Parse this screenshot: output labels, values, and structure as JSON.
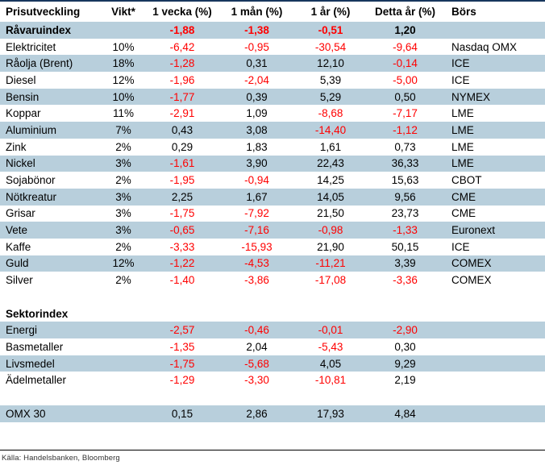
{
  "colors": {
    "row_shade": "#b8cfdc",
    "negative_value": "#ff0000",
    "top_rule": "#17365d",
    "footer_rule": "#000000",
    "source_text": "#333333"
  },
  "footer": {
    "source": "Källa: Handelsbanken, Bloomberg"
  },
  "table": {
    "columns": [
      "Prisutveckling",
      "Vikt*",
      "1 vecka (%)",
      "1 mån (%)",
      "1 år (%)",
      "Detta år (%)",
      "Börs"
    ],
    "rows": [
      {
        "name": "Råvaruindex",
        "vikt": "",
        "w1": "-1,88",
        "m1": "-1,38",
        "y1": "-0,51",
        "ytd": "1,20",
        "bors": "",
        "shade": true,
        "bold": true
      },
      {
        "name": "Elektricitet",
        "vikt": "10%",
        "w1": "-6,42",
        "m1": "-0,95",
        "y1": "-30,54",
        "ytd": "-9,64",
        "bors": "Nasdaq OMX",
        "shade": false
      },
      {
        "name": "Råolja (Brent)",
        "vikt": "18%",
        "w1": "-1,28",
        "m1": "0,31",
        "y1": "12,10",
        "ytd": "-0,14",
        "bors": "ICE",
        "shade": true
      },
      {
        "name": "Diesel",
        "vikt": "12%",
        "w1": "-1,96",
        "m1": "-2,04",
        "y1": "5,39",
        "ytd": "-5,00",
        "bors": "ICE",
        "shade": false
      },
      {
        "name": "Bensin",
        "vikt": "10%",
        "w1": "-1,77",
        "m1": "0,39",
        "y1": "5,29",
        "ytd": "0,50",
        "bors": "NYMEX",
        "shade": true
      },
      {
        "name": "Koppar",
        "vikt": "11%",
        "w1": "-2,91",
        "m1": "1,09",
        "y1": "-8,68",
        "ytd": "-7,17",
        "bors": "LME",
        "shade": false
      },
      {
        "name": "Aluminium",
        "vikt": "7%",
        "w1": "0,43",
        "m1": "3,08",
        "y1": "-14,40",
        "ytd": "-1,12",
        "bors": "LME",
        "shade": true
      },
      {
        "name": "Zink",
        "vikt": "2%",
        "w1": "0,29",
        "m1": "1,83",
        "y1": "1,61",
        "ytd": "0,73",
        "bors": "LME",
        "shade": false
      },
      {
        "name": "Nickel",
        "vikt": "3%",
        "w1": "-1,61",
        "m1": "3,90",
        "y1": "22,43",
        "ytd": "36,33",
        "bors": "LME",
        "shade": true
      },
      {
        "name": "Sojabönor",
        "vikt": "2%",
        "w1": "-1,95",
        "m1": "-0,94",
        "y1": "14,25",
        "ytd": "15,63",
        "bors": "CBOT",
        "shade": false
      },
      {
        "name": "Nötkreatur",
        "vikt": "3%",
        "w1": "2,25",
        "m1": "1,67",
        "y1": "14,05",
        "ytd": "9,56",
        "bors": "CME",
        "shade": true
      },
      {
        "name": "Grisar",
        "vikt": "3%",
        "w1": "-1,75",
        "m1": "-7,92",
        "y1": "21,50",
        "ytd": "23,73",
        "bors": "CME",
        "shade": false
      },
      {
        "name": "Vete",
        "vikt": "3%",
        "w1": "-0,65",
        "m1": "-7,16",
        "y1": "-0,98",
        "ytd": "-1,33",
        "bors": "Euronext",
        "shade": true
      },
      {
        "name": "Kaffe",
        "vikt": "2%",
        "w1": "-3,33",
        "m1": "-15,93",
        "y1": "21,90",
        "ytd": "50,15",
        "bors": "ICE",
        "shade": false
      },
      {
        "name": "Guld",
        "vikt": "12%",
        "w1": "-1,22",
        "m1": "-4,53",
        "y1": "-11,21",
        "ytd": "3,39",
        "bors": "COMEX",
        "shade": true
      },
      {
        "name": "Silver",
        "vikt": "2%",
        "w1": "-1,40",
        "m1": "-3,86",
        "y1": "-17,08",
        "ytd": "-3,36",
        "bors": "COMEX",
        "shade": false
      },
      {
        "type": "spacer"
      },
      {
        "name": "Sektorindex",
        "vikt": "",
        "w1": "",
        "m1": "",
        "y1": "",
        "ytd": "",
        "bors": "",
        "shade": false,
        "bold": true
      },
      {
        "name": "Energi",
        "vikt": "",
        "w1": "-2,57",
        "m1": "-0,46",
        "y1": "-0,01",
        "ytd": "-2,90",
        "bors": "",
        "shade": true
      },
      {
        "name": "Basmetaller",
        "vikt": "",
        "w1": "-1,35",
        "m1": "2,04",
        "y1": "-5,43",
        "ytd": "0,30",
        "bors": "",
        "shade": false
      },
      {
        "name": "Livsmedel",
        "vikt": "",
        "w1": "-1,75",
        "m1": "-5,68",
        "y1": "4,05",
        "ytd": "9,29",
        "bors": "",
        "shade": true
      },
      {
        "name": "Ädelmetaller",
        "vikt": "",
        "w1": "-1,29",
        "m1": "-3,30",
        "y1": "-10,81",
        "ytd": "2,19",
        "bors": "",
        "shade": false
      },
      {
        "type": "spacer"
      },
      {
        "name": "OMX 30",
        "vikt": "",
        "w1": "0,15",
        "m1": "2,86",
        "y1": "17,93",
        "ytd": "4,84",
        "bors": "",
        "shade": true
      }
    ]
  }
}
